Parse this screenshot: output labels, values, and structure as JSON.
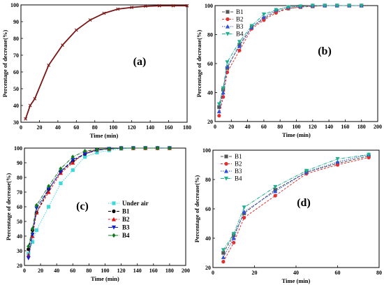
{
  "chart_data": [
    {
      "type": "line",
      "panel_label": "(a)",
      "xlabel": "Time (min)",
      "ylabel": "Percentage of decrease(%)",
      "xlim": [
        0,
        180
      ],
      "ylim": [
        30,
        100
      ],
      "xticks": [
        0,
        20,
        40,
        60,
        80,
        100,
        120,
        140,
        160,
        180
      ],
      "yticks": [
        30,
        40,
        50,
        60,
        70,
        80,
        90,
        100
      ],
      "legend": "none",
      "grid": false,
      "series": [
        {
          "name": "",
          "color": "#7a1515",
          "marker": "x",
          "dash": "",
          "x": [
            5,
            10,
            15,
            30,
            45,
            60,
            75,
            90,
            105,
            120,
            135,
            150,
            165,
            180
          ],
          "y": [
            32,
            40,
            44,
            64,
            76,
            85,
            91,
            95,
            97.5,
            98.5,
            99.2,
            99.5,
            99.5,
            99.5
          ]
        }
      ]
    },
    {
      "type": "line",
      "panel_label": "(b)",
      "xlabel": "Time (min)",
      "ylabel": "Percentage of decrease(%)",
      "xlim": [
        0,
        200
      ],
      "ylim": [
        20,
        100
      ],
      "xticks": [
        0,
        20,
        40,
        60,
        80,
        100,
        120,
        140,
        160,
        180,
        200
      ],
      "yticks": [
        20,
        40,
        60,
        80,
        100
      ],
      "legend": "top-left",
      "grid": false,
      "series": [
        {
          "name": "B1",
          "color": "#555555",
          "marker": "square",
          "dash": "4,2",
          "x": [
            5,
            10,
            15,
            30,
            45,
            60,
            75,
            90,
            105,
            120,
            135,
            150,
            165,
            180
          ],
          "y": [
            30,
            42,
            57,
            73,
            85,
            91,
            96,
            98,
            99,
            99.5,
            100,
            100,
            100,
            100
          ]
        },
        {
          "name": "B2",
          "color": "#e03030",
          "marker": "circle",
          "dash": "3,2",
          "x": [
            5,
            10,
            15,
            30,
            45,
            60,
            75,
            90,
            105,
            120,
            135,
            150,
            165,
            180
          ],
          "y": [
            24,
            37,
            54,
            69,
            84,
            90,
            95,
            98,
            99,
            99.5,
            100,
            100,
            100,
            100
          ]
        },
        {
          "name": "B3",
          "color": "#3050d8",
          "marker": "triangle",
          "dash": "1.5,1.5",
          "x": [
            5,
            10,
            15,
            30,
            45,
            60,
            75,
            90,
            105,
            120,
            135,
            150,
            165,
            180
          ],
          "y": [
            27,
            40,
            58,
            72,
            85,
            92,
            97,
            99,
            99.5,
            100,
            100,
            100,
            100,
            100
          ]
        },
        {
          "name": "B4",
          "color": "#20b090",
          "marker": "triangle-down",
          "dash": "5,1.5,1,1.5",
          "x": [
            5,
            10,
            15,
            30,
            45,
            60,
            75,
            90,
            105,
            120,
            135,
            150,
            165,
            180
          ],
          "y": [
            32,
            43,
            61,
            75,
            86,
            94,
            97,
            99,
            99.5,
            100,
            100,
            100,
            100,
            100
          ]
        }
      ]
    },
    {
      "type": "line",
      "panel_label": "(c)",
      "xlabel": "Time (min)",
      "ylabel": "Percentage of decrease(%)",
      "xlim": [
        0,
        200
      ],
      "ylim": [
        20,
        100
      ],
      "xticks": [
        0,
        20,
        40,
        60,
        80,
        100,
        120,
        140,
        160,
        180,
        200
      ],
      "yticks": [
        20,
        30,
        40,
        50,
        60,
        70,
        80,
        90,
        100
      ],
      "legend": "center-right",
      "grid": false,
      "series": [
        {
          "name": "Under air",
          "color": "#40d8d8",
          "marker": "square",
          "dash": "1.5,1.5",
          "x": [
            5,
            10,
            15,
            30,
            45,
            60,
            75,
            90,
            105,
            120,
            135,
            150,
            165,
            180
          ],
          "y": [
            28,
            36,
            44,
            60,
            76,
            85,
            94,
            97,
            98.5,
            99.5,
            100,
            100,
            100,
            100
          ]
        },
        {
          "name": "B1",
          "color": "#000000",
          "marker": "circle",
          "dash": "4,2",
          "x": [
            5,
            10,
            15,
            30,
            45,
            60,
            75,
            90,
            105,
            120,
            135,
            150,
            165,
            180
          ],
          "y": [
            31,
            44,
            56,
            72,
            84,
            91,
            96,
            99,
            99.5,
            100,
            100,
            100,
            100,
            100
          ]
        },
        {
          "name": "B2",
          "color": "#e01010",
          "marker": "triangle",
          "dash": "3,2",
          "x": [
            5,
            10,
            15,
            30,
            45,
            60,
            75,
            90,
            105,
            120,
            135,
            150,
            165,
            180
          ],
          "y": [
            27,
            40,
            56,
            70,
            83,
            90,
            97,
            99,
            99.5,
            100,
            100,
            100,
            100,
            100
          ]
        },
        {
          "name": "B3",
          "color": "#1020d0",
          "marker": "triangle-down",
          "dash": "6,2",
          "x": [
            5,
            10,
            15,
            30,
            45,
            60,
            75,
            90,
            105,
            120,
            135,
            150,
            165,
            180
          ],
          "y": [
            25,
            41,
            59,
            72,
            84,
            92,
            96,
            98.5,
            99.5,
            100,
            100,
            100,
            100,
            100
          ]
        },
        {
          "name": "B4",
          "color": "#107a20",
          "marker": "diamond",
          "dash": "5,1.5,1,1.5",
          "x": [
            5,
            10,
            15,
            30,
            45,
            60,
            75,
            90,
            105,
            120,
            135,
            150,
            165,
            180
          ],
          "y": [
            33,
            45,
            61,
            74,
            86,
            94,
            98,
            99,
            99.5,
            100,
            100,
            100,
            100,
            100
          ]
        }
      ]
    },
    {
      "type": "line",
      "panel_label": "(d)",
      "xlabel": "Time (min)",
      "ylabel": "Percentage of decrease(%)",
      "xlim": [
        0,
        80
      ],
      "ylim": [
        20,
        100
      ],
      "xticks": [
        0,
        20,
        40,
        60,
        80
      ],
      "xtick_labels": [
        "0",
        "20",
        "40",
        "60",
        "80"
      ],
      "yticks": [
        20,
        40,
        60,
        80,
        100
      ],
      "legend": "top-left",
      "grid": false,
      "series": [
        {
          "name": "B1",
          "color": "#555555",
          "marker": "square",
          "dash": "4,2",
          "x": [
            5,
            10,
            15,
            30,
            45,
            60,
            75
          ],
          "y": [
            30,
            42,
            57,
            73,
            85,
            91,
            96
          ]
        },
        {
          "name": "B2",
          "color": "#e03030",
          "marker": "circle",
          "dash": "3,2",
          "x": [
            5,
            10,
            15,
            30,
            45,
            60,
            75
          ],
          "y": [
            24,
            37,
            54,
            69,
            84,
            90,
            95
          ]
        },
        {
          "name": "B3",
          "color": "#3050d8",
          "marker": "triangle",
          "dash": "1.5,1.5",
          "x": [
            5,
            10,
            15,
            30,
            45,
            60,
            75
          ],
          "y": [
            27,
            40,
            58,
            72,
            85,
            92,
            97
          ]
        },
        {
          "name": "B4",
          "color": "#20b090",
          "marker": "triangle-down",
          "dash": "5,1.5,1,1.5",
          "x": [
            5,
            10,
            15,
            30,
            45,
            60,
            75
          ],
          "y": [
            32,
            43,
            61,
            75,
            86,
            94,
            97
          ]
        }
      ]
    }
  ]
}
